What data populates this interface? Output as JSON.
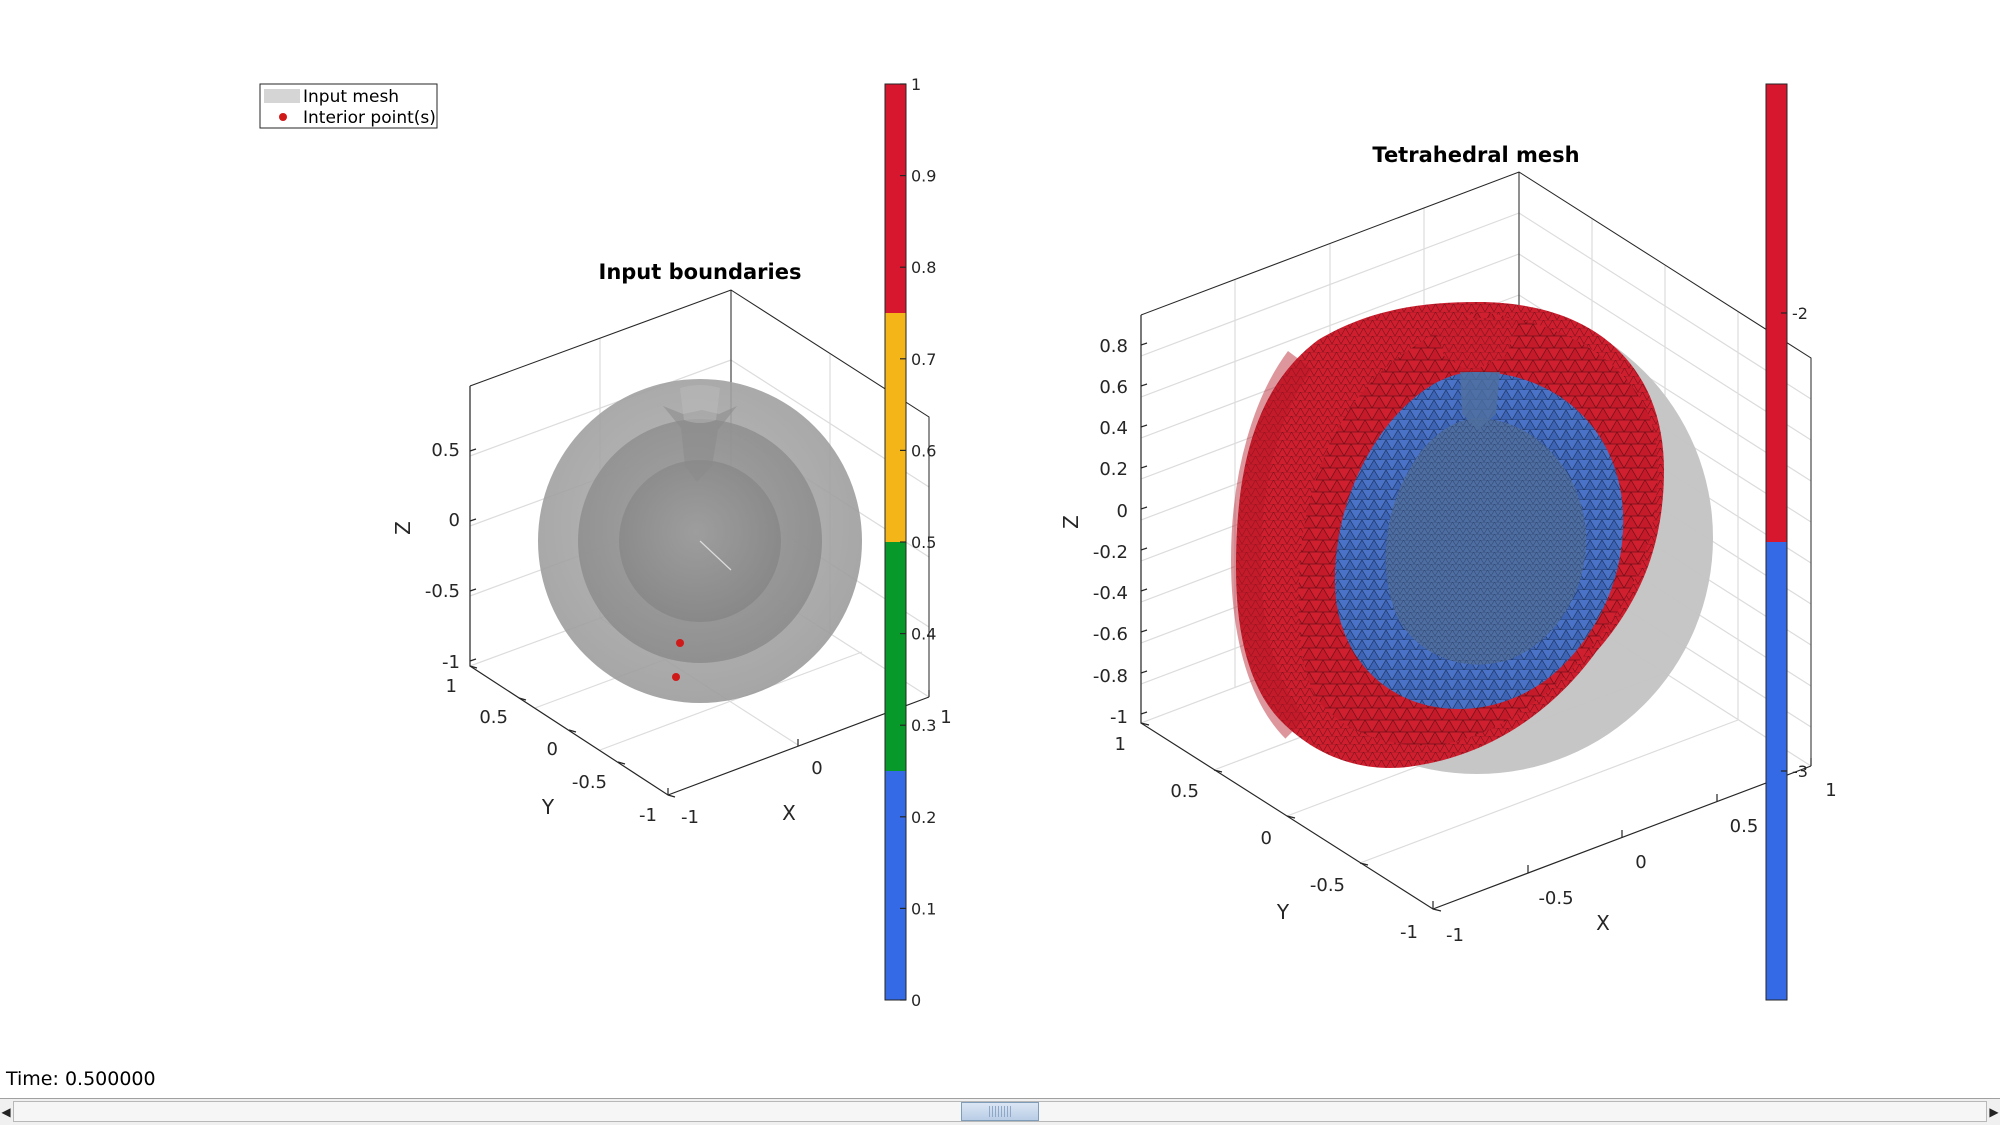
{
  "left_plot": {
    "title": "Input boundaries",
    "xlabel": "X",
    "ylabel": "Y",
    "zlabel": "Z",
    "z_ticks": [
      "0.5",
      "0",
      "-0.5",
      "-1"
    ],
    "y_ticks": [
      "1",
      "0.5",
      "0",
      "-0.5",
      "-1"
    ],
    "x_ticks": [
      "-1",
      "0",
      "1"
    ],
    "legend": [
      "Input mesh",
      "Interior point(s)"
    ],
    "colorbar": {
      "ticks": [
        "1",
        "0.9",
        "0.8",
        "0.7",
        "0.6",
        "0.5",
        "0.4",
        "0.3",
        "0.2",
        "0.1",
        "0"
      ],
      "bands": [
        "#d7172d",
        "#f3b517",
        "#079a2b",
        "#356ae6"
      ]
    }
  },
  "right_plot": {
    "title": "Tetrahedral mesh",
    "xlabel": "X",
    "ylabel": "Y",
    "zlabel": "Z",
    "z_ticks": [
      "0.8",
      "0.6",
      "0.4",
      "0.2",
      "0",
      "-0.2",
      "-0.4",
      "-0.6",
      "-0.8",
      "-1"
    ],
    "y_ticks": [
      "1",
      "0.5",
      "0",
      "-0.5",
      "-1"
    ],
    "x_ticks": [
      "-1",
      "-0.5",
      "0",
      "0.5",
      "1"
    ],
    "colorbar": {
      "ticks": [
        "-2",
        "-3"
      ],
      "bands": [
        "#d7172d",
        "#356ae6"
      ]
    }
  },
  "status": "Time: 0.500000",
  "icons": {
    "left": "arrow-left-icon",
    "right": "arrow-right-icon"
  }
}
